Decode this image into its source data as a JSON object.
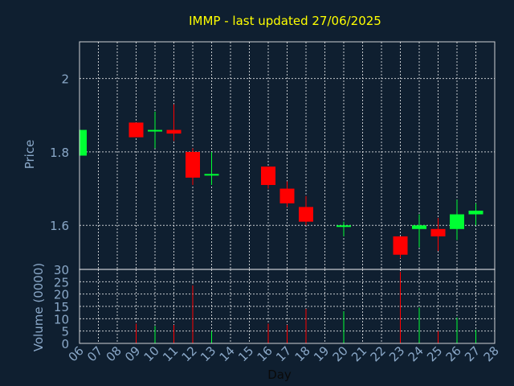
{
  "chart_data": {
    "type": "candlestick",
    "title": "IMMP - last updated 27/06/2025",
    "xlabel": "Day",
    "price_ylabel": "Price",
    "volume_ylabel": "Volume (0000)",
    "price_ylim": [
      1.48,
      2.1
    ],
    "price_yticks": [
      "2",
      "1.8",
      "1.6"
    ],
    "price_ytick_values": [
      2.0,
      1.8,
      1.6
    ],
    "volume_ylim": [
      0,
      30
    ],
    "volume_yticks": [
      "30",
      "25",
      "20",
      "15",
      "10",
      "5",
      "0"
    ],
    "volume_ytick_values": [
      30,
      25,
      20,
      15,
      10,
      5,
      0
    ],
    "x_days": [
      "06",
      "07",
      "08",
      "09",
      "10",
      "11",
      "12",
      "13",
      "14",
      "15",
      "16",
      "17",
      "18",
      "19",
      "20",
      "21",
      "22",
      "23",
      "24",
      "25",
      "26",
      "27",
      "28"
    ],
    "up_color": "#00ff33",
    "down_color": "#ff0000",
    "candles": [
      {
        "day": "06",
        "open": 1.79,
        "high": 1.86,
        "low": 1.79,
        "close": 1.86,
        "volume": 0
      },
      {
        "day": "09",
        "open": 1.88,
        "high": 1.88,
        "low": 1.84,
        "close": 1.84,
        "volume": 8
      },
      {
        "day": "10",
        "open": 1.86,
        "high": 1.91,
        "low": 1.81,
        "close": 1.86,
        "volume": 7
      },
      {
        "day": "11",
        "open": 1.86,
        "high": 1.93,
        "low": 1.83,
        "close": 1.85,
        "volume": 7.5
      },
      {
        "day": "12",
        "open": 1.8,
        "high": 1.81,
        "low": 1.71,
        "close": 1.73,
        "volume": 23.5
      },
      {
        "day": "13",
        "open": 1.74,
        "high": 1.8,
        "low": 1.71,
        "close": 1.74,
        "volume": 5
      },
      {
        "day": "16",
        "open": 1.76,
        "high": 1.76,
        "low": 1.7,
        "close": 1.71,
        "volume": 8
      },
      {
        "day": "17",
        "open": 1.7,
        "high": 1.72,
        "low": 1.65,
        "close": 1.66,
        "volume": 7.5
      },
      {
        "day": "18",
        "open": 1.65,
        "high": 1.68,
        "low": 1.6,
        "close": 1.61,
        "volume": 14
      },
      {
        "day": "20",
        "open": 1.6,
        "high": 1.61,
        "low": 1.57,
        "close": 1.6,
        "volume": 13
      },
      {
        "day": "23",
        "open": 1.57,
        "high": 1.57,
        "low": 1.51,
        "close": 1.52,
        "volume": 29
      },
      {
        "day": "24",
        "open": 1.59,
        "high": 1.63,
        "low": 1.54,
        "close": 1.6,
        "volume": 14.5
      },
      {
        "day": "25",
        "open": 1.59,
        "high": 1.62,
        "low": 1.53,
        "close": 1.57,
        "volume": 5
      },
      {
        "day": "26",
        "open": 1.59,
        "high": 1.67,
        "low": 1.56,
        "close": 1.63,
        "volume": 10.5
      },
      {
        "day": "27",
        "open": 1.63,
        "high": 1.66,
        "low": 1.6,
        "close": 1.64,
        "volume": 5.5
      }
    ]
  }
}
